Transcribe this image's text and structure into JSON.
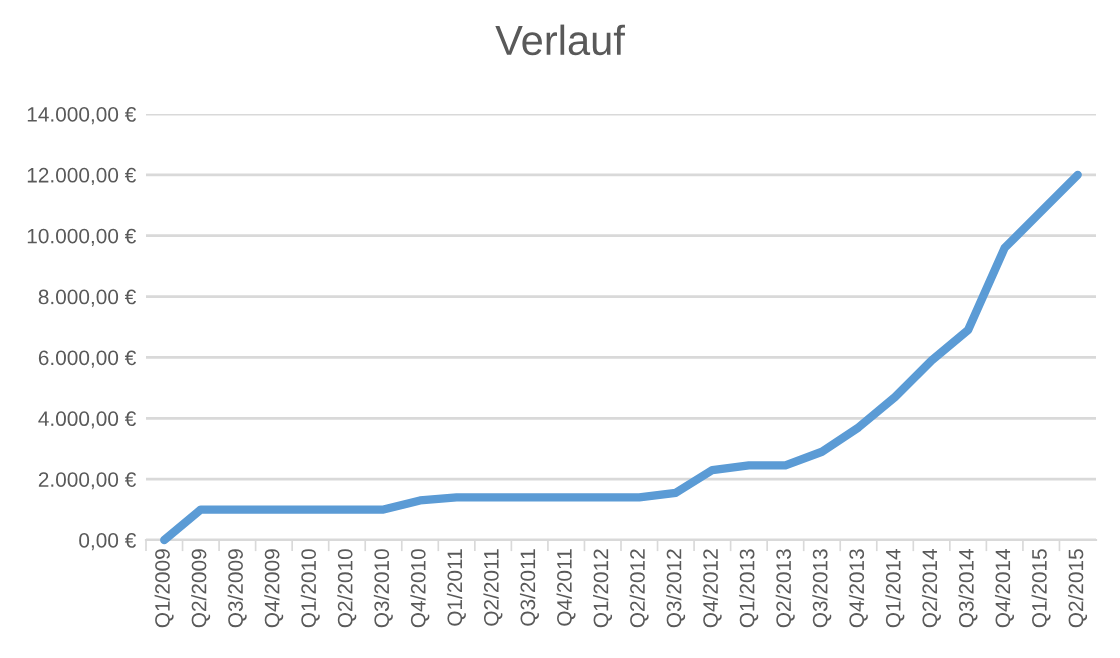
{
  "chart_data": {
    "type": "line",
    "title": "Verlauf",
    "categories": [
      "Q1/2009",
      "Q2/2009",
      "Q3/2009",
      "Q4/2009",
      "Q1/2010",
      "Q2/2010",
      "Q3/2010",
      "Q4/2010",
      "Q1/2011",
      "Q2/2011",
      "Q3/2011",
      "Q4/2011",
      "Q1/2012",
      "Q2/2012",
      "Q3/2012",
      "Q4/2012",
      "Q1/2013",
      "Q2/2013",
      "Q3/2013",
      "Q4/2013",
      "Q1/2014",
      "Q2/2014",
      "Q3/2014",
      "Q4/2014",
      "Q1/2015",
      "Q2/2015"
    ],
    "series": [
      {
        "color": "#5b9bd5",
        "values": [
          0,
          1000,
          1000,
          1000,
          1000,
          1000,
          1000,
          1300,
          1400,
          1400,
          1400,
          1400,
          1400,
          1400,
          1550,
          2300,
          2450,
          2450,
          2900,
          3700,
          4700,
          5900,
          6900,
          9600,
          10800,
          12000
        ]
      }
    ],
    "ylim": [
      0,
      14000
    ],
    "yticks": [
      {
        "value": 0,
        "label": "0,00 €"
      },
      {
        "value": 2000,
        "label": "2.000,00 €"
      },
      {
        "value": 4000,
        "label": "4.000,00 €"
      },
      {
        "value": 6000,
        "label": "6.000,00 €"
      },
      {
        "value": 8000,
        "label": "8.000,00 €"
      },
      {
        "value": 10000,
        "label": "10.000,00 €"
      },
      {
        "value": 12000,
        "label": "12.000,00 €"
      },
      {
        "value": 14000,
        "label": "14.000,00 €"
      }
    ],
    "grid": "y",
    "legend": false,
    "marker": "none",
    "line_style": "solid"
  }
}
